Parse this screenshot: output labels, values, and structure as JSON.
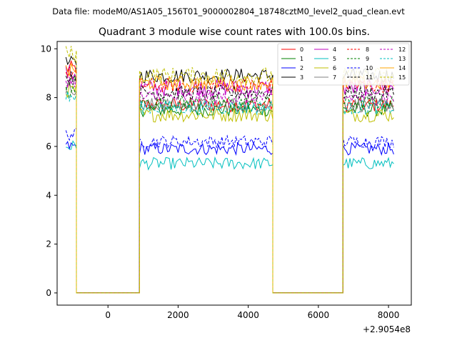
{
  "chart_data": {
    "type": "line",
    "suptitle": "Data file: modeM0/AS1A05_156T01_9000002804_18748cztM0_level2_quad_clean.evt",
    "title": "Quadrant 3 module wise count rates with 100.0s bins.",
    "xlabel": "",
    "ylabel": "",
    "x_offset_label": "+2.9054e8",
    "xlim": [
      -1450,
      8650
    ],
    "ylim": [
      -0.5,
      10.3
    ],
    "xticks": [
      0,
      2000,
      4000,
      6000,
      8000
    ],
    "yticks": [
      0,
      2,
      4,
      6,
      8,
      10
    ],
    "grid": false,
    "legend_position": "top-right",
    "segments": [
      {
        "start": -1200,
        "end": -900,
        "rate": "on"
      },
      {
        "start": -900,
        "end": 900,
        "rate": "off"
      },
      {
        "start": 900,
        "end": 4700,
        "rate": "on"
      },
      {
        "start": 4700,
        "end": 6700,
        "rate": "off"
      },
      {
        "start": 6700,
        "end": 8150,
        "rate": "on"
      }
    ],
    "series": [
      {
        "name": "0",
        "color": "#ff0000",
        "dashed": false,
        "level": 7.7,
        "start": 9.2,
        "jitter": 0.3
      },
      {
        "name": "1",
        "color": "#008000",
        "dashed": false,
        "level": 7.5,
        "start": 8.6,
        "jitter": 0.28
      },
      {
        "name": "2",
        "color": "#0000ff",
        "dashed": false,
        "level": 5.9,
        "start": 6.0,
        "jitter": 0.25
      },
      {
        "name": "3",
        "color": "#000000",
        "dashed": false,
        "level": 8.9,
        "start": 9.4,
        "jitter": 0.3
      },
      {
        "name": "4",
        "color": "#bf00bf",
        "dashed": false,
        "level": 8.4,
        "start": 9.0,
        "jitter": 0.35
      },
      {
        "name": "5",
        "color": "#00bfbf",
        "dashed": false,
        "level": 5.3,
        "start": 6.0,
        "jitter": 0.25
      },
      {
        "name": "6",
        "color": "#bfbf00",
        "dashed": false,
        "level": 7.3,
        "start": 8.3,
        "jitter": 0.3
      },
      {
        "name": "7",
        "color": "#808080",
        "dashed": false,
        "level": 7.7,
        "start": 8.4,
        "jitter": 0.3
      },
      {
        "name": "8",
        "color": "#ff0000",
        "dashed": true,
        "level": 8.5,
        "start": 9.0,
        "jitter": 0.3
      },
      {
        "name": "9",
        "color": "#008000",
        "dashed": true,
        "level": 7.8,
        "start": 8.2,
        "jitter": 0.28
      },
      {
        "name": "10",
        "color": "#0000ff",
        "dashed": true,
        "level": 6.2,
        "start": 6.5,
        "jitter": 0.25
      },
      {
        "name": "11",
        "color": "#000000",
        "dashed": true,
        "level": 8.2,
        "start": 8.8,
        "jitter": 0.3
      },
      {
        "name": "12",
        "color": "#bf00bf",
        "dashed": true,
        "level": 8.0,
        "start": 8.7,
        "jitter": 0.3
      },
      {
        "name": "13",
        "color": "#00bfbf",
        "dashed": true,
        "level": 7.6,
        "start": 8.0,
        "jitter": 0.3
      },
      {
        "name": "14",
        "color": "#ffa500",
        "dashed": false,
        "level": 8.6,
        "start": 9.1,
        "jitter": 0.3
      },
      {
        "name": "15",
        "color": "#bfbf00",
        "dashed": true,
        "level": 8.9,
        "start": 9.8,
        "jitter": 0.35
      }
    ]
  }
}
